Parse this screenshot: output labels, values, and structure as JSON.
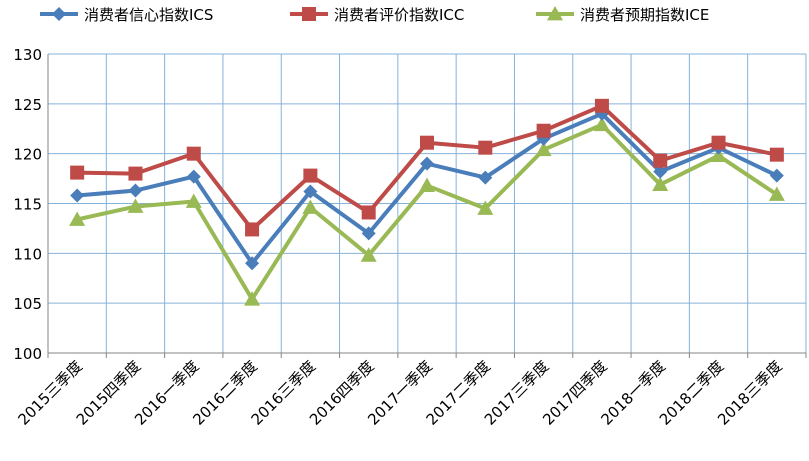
{
  "chart_data": {
    "type": "line",
    "title": "",
    "xlabel": "",
    "ylabel": "",
    "ylim": [
      100,
      130
    ],
    "yticks": [
      100,
      105,
      110,
      115,
      120,
      125,
      130
    ],
    "grid": true,
    "legend_position": "top",
    "categories": [
      "2015三季度",
      "2015四季度",
      "2016一季度",
      "2016二季度",
      "2016三季度",
      "2016四季度",
      "2017一季度",
      "2017二季度",
      "2017三季度",
      "2017四季度",
      "2018一季度",
      "2018二季度",
      "2018三季度"
    ],
    "series": [
      {
        "name": "消费者信心指数ICS",
        "color": "#4A7EBB",
        "marker": "diamond",
        "values": [
          115.8,
          116.3,
          117.7,
          109.0,
          116.2,
          112.0,
          119.0,
          117.6,
          121.5,
          124.0,
          118.2,
          120.6,
          117.8
        ]
      },
      {
        "name": "消费者评价指数ICC",
        "color": "#BE4B48",
        "marker": "square",
        "values": [
          118.1,
          118.0,
          120.0,
          112.4,
          117.8,
          114.1,
          121.1,
          120.6,
          122.3,
          124.8,
          119.3,
          121.1,
          119.9
        ]
      },
      {
        "name": "消费者预期指数ICE",
        "color": "#98B954",
        "marker": "triangle",
        "values": [
          113.4,
          114.7,
          115.2,
          105.4,
          114.6,
          109.8,
          116.8,
          114.5,
          120.4,
          122.9,
          116.9,
          119.8,
          115.9
        ]
      }
    ]
  }
}
